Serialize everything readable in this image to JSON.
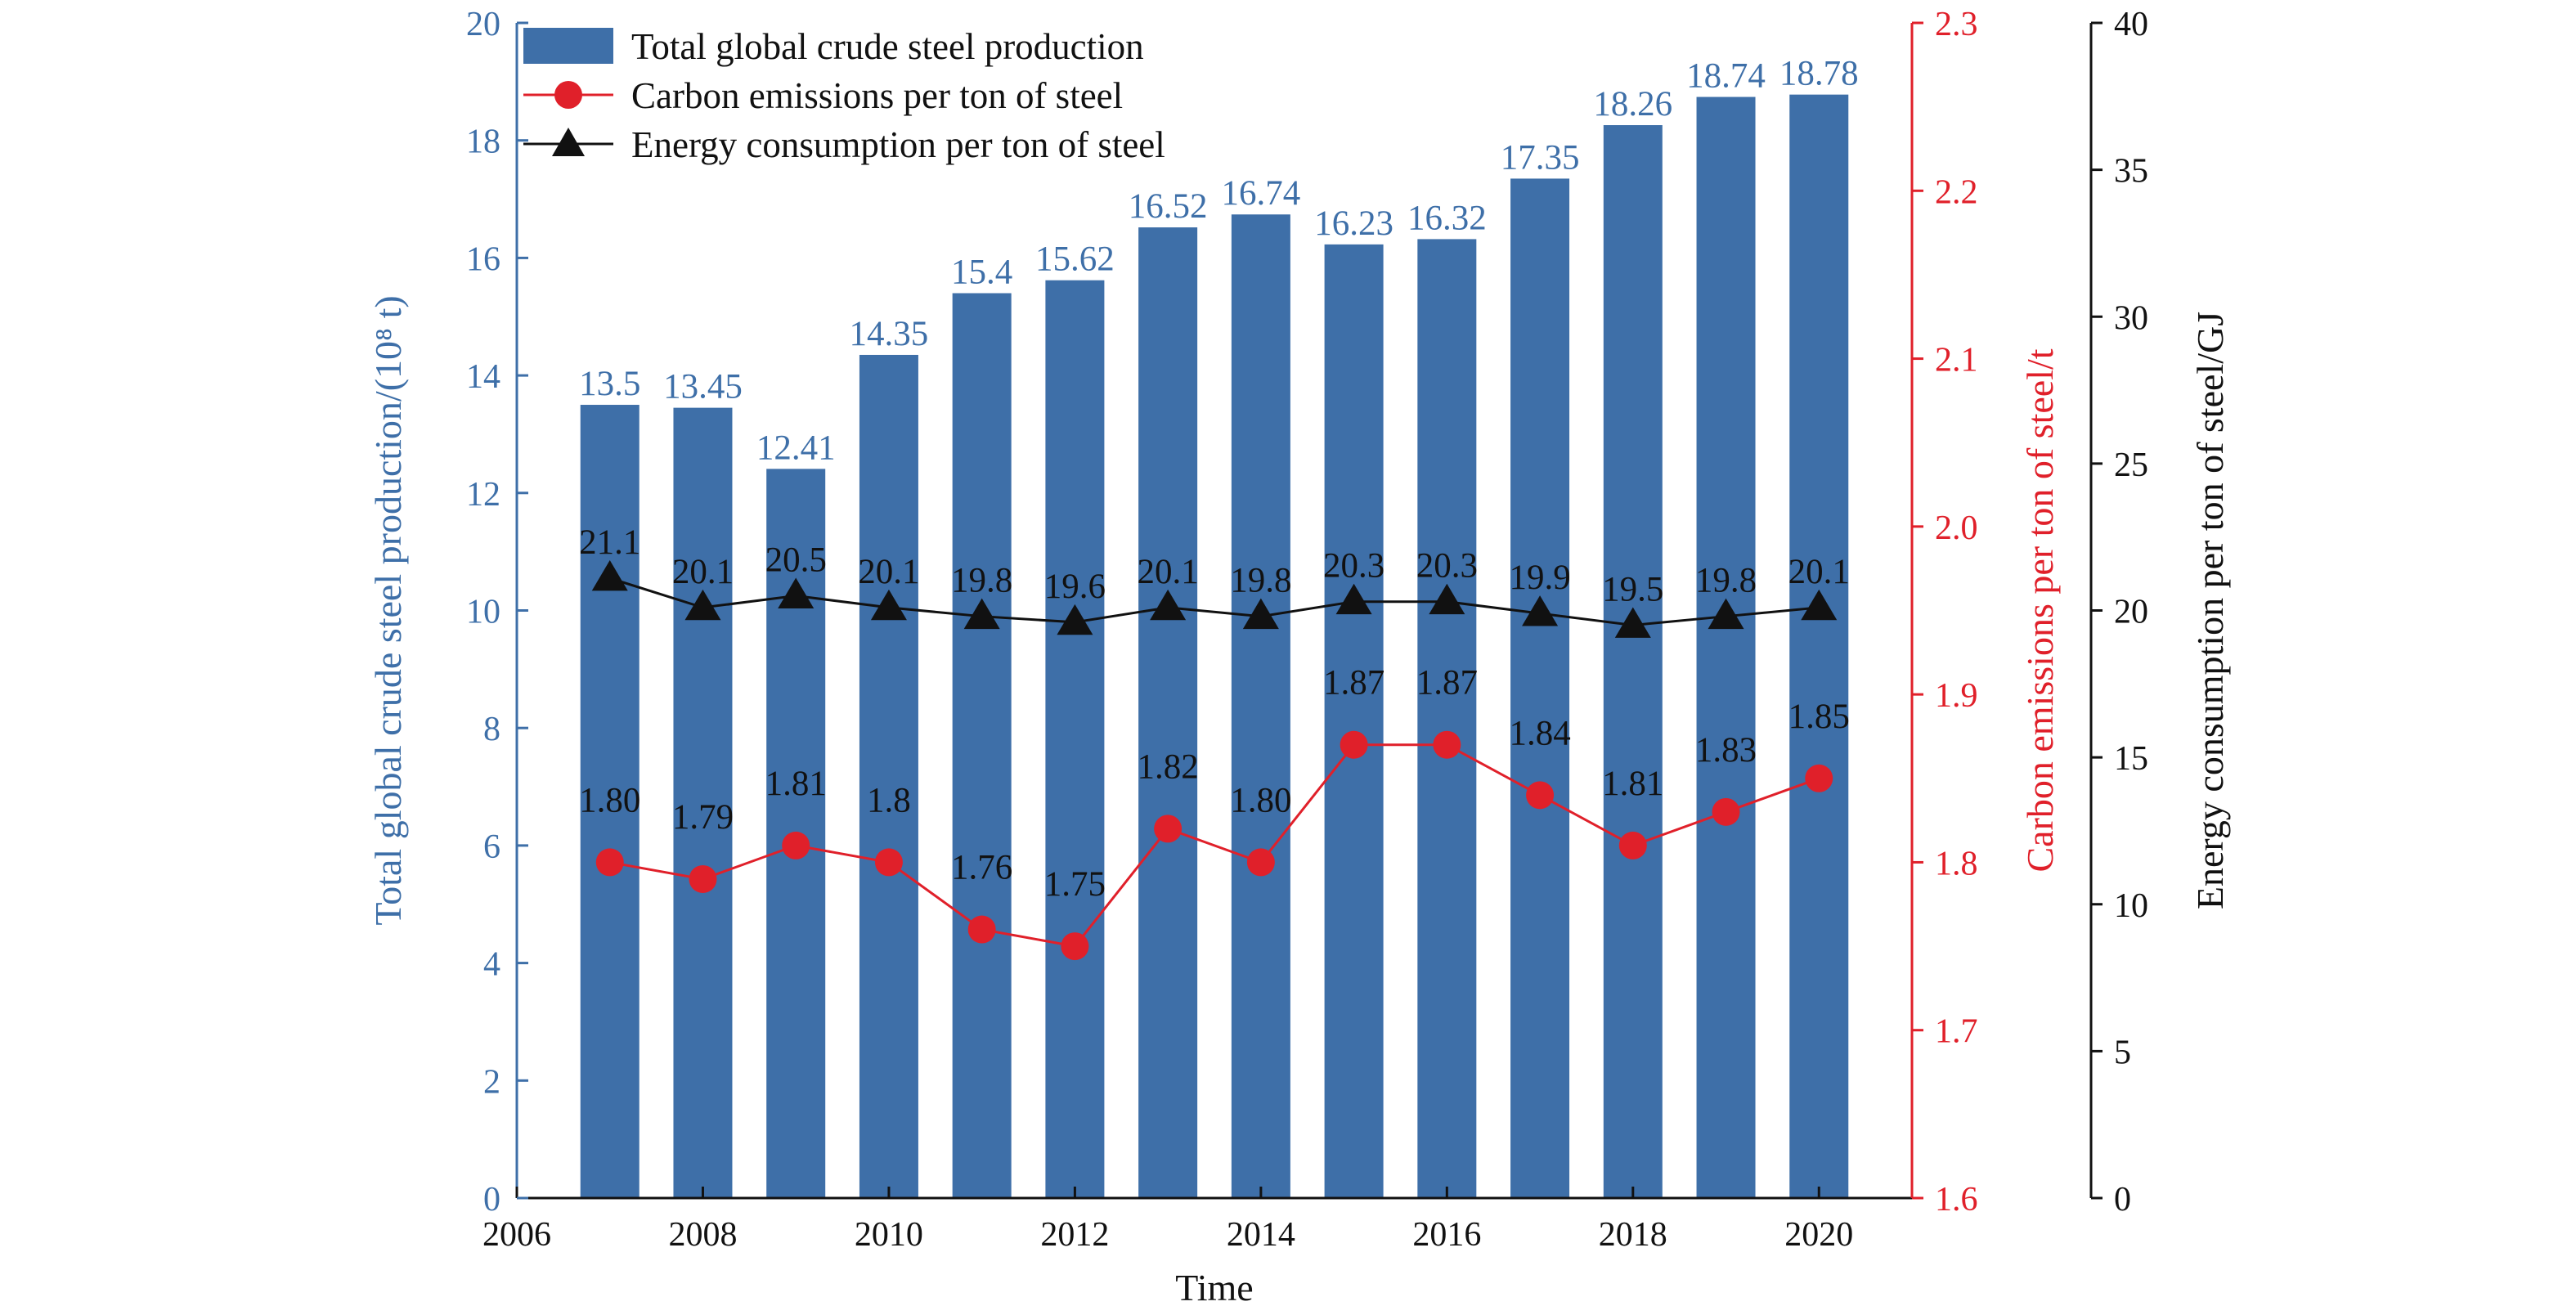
{
  "chart_data": {
    "type": "bar",
    "title": "",
    "xlabel": "Time",
    "x_ticks": [
      "2006",
      "2008",
      "2010",
      "2012",
      "2014",
      "2016",
      "2018",
      "2020"
    ],
    "xlim": [
      2006,
      2021
    ],
    "x": [
      2007,
      2008,
      2009,
      2010,
      2011,
      2012,
      2013,
      2014,
      2015,
      2016,
      2017,
      2018,
      2019,
      2020
    ],
    "grid": false,
    "legend_position": "top-left",
    "axes": {
      "left": {
        "label": "Total global crude steel production/(10⁸ t)",
        "ylim": [
          0,
          20
        ],
        "ticks": [
          "0",
          "2",
          "4",
          "6",
          "8",
          "10",
          "12",
          "14",
          "16",
          "18",
          "20"
        ],
        "color": "#3e6fa8"
      },
      "right_inner": {
        "label": "Carbon emissions per ton of steel/t",
        "ylim": [
          1.6,
          2.3
        ],
        "ticks": [
          "1.6",
          "1.7",
          "1.8",
          "1.9",
          "2.0",
          "2.1",
          "2.2",
          "2.3"
        ],
        "color": "#e0202a"
      },
      "right_outer": {
        "label": "Energy consumption per ton of steel/GJ",
        "ylim": [
          0,
          40
        ],
        "ticks": [
          "0",
          "5",
          "10",
          "15",
          "20",
          "25",
          "30",
          "35",
          "40"
        ],
        "color": "#111111"
      }
    },
    "series": [
      {
        "name": "Total global crude steel production",
        "type": "bar",
        "axis": "left",
        "color": "#3e6fa8",
        "values": [
          13.5,
          13.45,
          12.41,
          14.35,
          15.4,
          15.62,
          16.52,
          16.74,
          16.23,
          16.32,
          17.35,
          18.26,
          18.74,
          18.78
        ],
        "labels": [
          "13.5",
          "13.45",
          "12.41",
          "14.35",
          "15.4",
          "15.62",
          "16.52",
          "16.74",
          "16.23",
          "16.32",
          "17.35",
          "18.26",
          "18.74",
          "18.78"
        ]
      },
      {
        "name": "Carbon emissions per ton of steel",
        "type": "line",
        "marker": "circle",
        "axis": "right_inner",
        "color": "#e0202a",
        "values": [
          1.8,
          1.79,
          1.81,
          1.8,
          1.76,
          1.75,
          1.82,
          1.8,
          1.87,
          1.87,
          1.84,
          1.81,
          1.83,
          1.85
        ],
        "labels": [
          "1.80",
          "1.79",
          "1.81",
          "1.8",
          "1.76",
          "1.75",
          "1.82",
          "1.80",
          "1.87",
          "1.87",
          "1.84",
          "1.81",
          "1.83",
          "1.85"
        ]
      },
      {
        "name": "Energy consumption per ton of steel",
        "type": "line",
        "marker": "triangle",
        "axis": "right_outer",
        "color": "#111111",
        "values": [
          21.1,
          20.1,
          20.5,
          20.1,
          19.8,
          19.6,
          20.1,
          19.8,
          20.3,
          20.3,
          19.9,
          19.5,
          19.8,
          20.1
        ],
        "labels": [
          "21.1",
          "20.1",
          "20.5",
          "20.1",
          "19.8",
          "19.6",
          "20.1",
          "19.8",
          "20.3",
          "20.3",
          "19.9",
          "19.5",
          "19.8",
          "20.1"
        ]
      }
    ]
  }
}
